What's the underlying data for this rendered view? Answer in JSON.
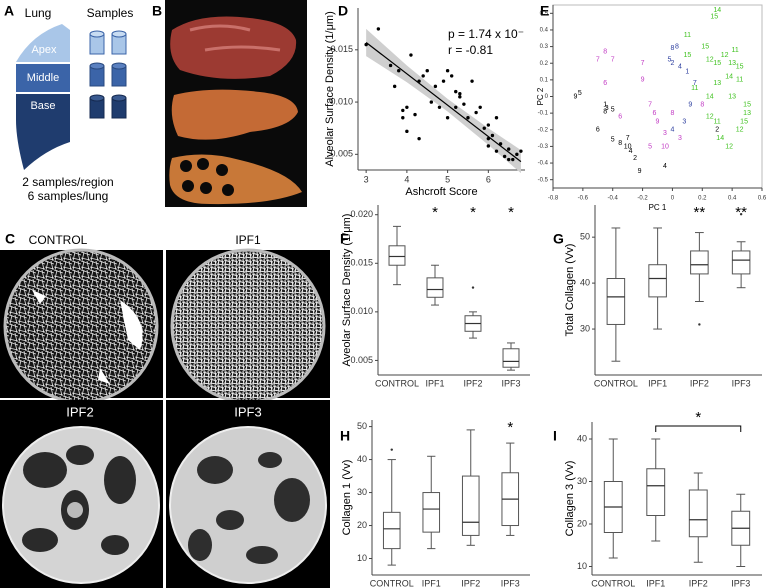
{
  "panel_a": {
    "label": "A",
    "lung": "Lung",
    "samples": "Samples",
    "regions": [
      "Apex",
      "Middle",
      "Base"
    ],
    "notes": [
      "2 samples/region",
      "6 samples/lung"
    ]
  },
  "panel_b": {
    "label": "B"
  },
  "panel_c": {
    "label": "C",
    "images": [
      "CONTROL",
      "IPF1",
      "IPF2",
      "IPF3"
    ]
  },
  "chart_data": [
    {
      "label": "D",
      "type": "scatter",
      "xlabel": "Ashcroft Score",
      "ylabel": "Alveolar Surface Density (1/μm)",
      "annotations": [
        "p = 1.74 x 10⁻",
        "r = -0.81"
      ],
      "color": "#000000",
      "x": [
        3.0,
        3.3,
        3.6,
        3.7,
        3.8,
        3.9,
        4.0,
        4.1,
        4.2,
        4.3,
        4.4,
        4.5,
        4.6,
        4.7,
        4.8,
        4.9,
        5.0,
        5.0,
        5.1,
        5.2,
        5.2,
        5.3,
        5.4,
        5.5,
        5.6,
        5.7,
        5.8,
        5.9,
        6.0,
        6.0,
        6.1,
        6.2,
        6.2,
        6.3,
        6.4,
        6.5,
        6.6,
        6.7,
        6.8,
        4.3,
        4.0,
        5.3,
        6.5,
        3.9,
        6.0
      ],
      "values": [
        0.0155,
        0.017,
        0.0135,
        0.0115,
        0.013,
        0.0085,
        0.0095,
        0.0145,
        0.0088,
        0.012,
        0.0125,
        0.013,
        0.01,
        0.0115,
        0.0095,
        0.012,
        0.013,
        0.0085,
        0.0125,
        0.011,
        0.0095,
        0.0105,
        0.0098,
        0.0085,
        0.012,
        0.009,
        0.0095,
        0.0075,
        0.0065,
        0.0058,
        0.0068,
        0.0053,
        0.0085,
        0.006,
        0.0048,
        0.0055,
        0.0045,
        0.005,
        0.0053,
        0.0065,
        0.0072,
        0.0108,
        0.0045,
        0.0092,
        0.0078
      ],
      "fit": {
        "x": [
          3,
          6.8
        ],
        "y": [
          0.0157,
          0.0043
        ]
      },
      "band": {
        "x": [
          3,
          4,
          5,
          6,
          6.8
        ],
        "upper": [
          0.017,
          0.0135,
          0.0103,
          0.0075,
          0.0054
        ],
        "lower": [
          0.0144,
          0.0119,
          0.0091,
          0.0059,
          0.0032
        ]
      },
      "xlim": [
        2.8,
        6.9
      ],
      "ylim": [
        0.0035,
        0.019
      ],
      "xticks": [
        3,
        4,
        5,
        6
      ],
      "yticks": [
        0.005,
        {
          "value": 0.01,
          "label": "0.010"
        },
        0.015
      ]
    },
    {
      "label": "E",
      "type": "scatter",
      "marker": "text",
      "xlabel": "PC 1",
      "ylabel": "PC 2",
      "xlim": [
        -0.8,
        0.6
      ],
      "ylim": [
        -0.55,
        0.55
      ],
      "xticks": [
        -0.8,
        -0.6,
        -0.4,
        -0.2,
        0,
        0.2,
        0.4,
        0.6
      ],
      "yticks": [
        -0.5,
        -0.4,
        -0.3,
        -0.2,
        -0.1,
        0,
        0.1,
        0.2,
        0.3,
        0.4,
        0.5
      ],
      "series": [
        {
          "color": "#000000",
          "x": [
            -0.65,
            -0.62,
            -0.45,
            -0.44,
            -0.45,
            -0.4,
            -0.5,
            -0.4,
            -0.35,
            -0.3,
            -0.28,
            -0.25,
            -0.22,
            -0.05,
            -0.3,
            0.3
          ],
          "values": [
            0.0,
            0.02,
            -0.05,
            -0.07,
            -0.09,
            -0.08,
            -0.2,
            -0.26,
            -0.28,
            -0.3,
            -0.33,
            -0.37,
            -0.45,
            -0.42,
            -0.25,
            -0.2
          ],
          "labels": [
            "9",
            "5",
            "1",
            "3",
            "8",
            "5",
            "6",
            "5",
            "8",
            "10",
            "4",
            "2",
            "9",
            "4",
            "7",
            "2"
          ]
        },
        {
          "color": "#2b3d9e",
          "x": [
            0.0,
            0.03,
            -0.02,
            0.0,
            0.05,
            0.1,
            0.15,
            0.12,
            0.0,
            0.08
          ],
          "values": [
            0.29,
            0.3,
            0.22,
            0.2,
            0.18,
            0.15,
            0.08,
            -0.05,
            -0.2,
            -0.15
          ],
          "labels": [
            "8",
            "8",
            "5",
            "2",
            "4",
            "1",
            "7",
            "9",
            "4",
            "3"
          ]
        },
        {
          "color": "#c23bc4",
          "x": [
            -0.45,
            -0.5,
            -0.4,
            -0.2,
            -0.2,
            -0.45,
            -0.15,
            -0.12,
            -0.1,
            -0.05,
            0.0,
            0.05,
            -0.15,
            -0.05,
            -0.35,
            0.2
          ],
          "values": [
            0.27,
            0.22,
            0.22,
            0.2,
            0.1,
            0.08,
            -0.05,
            -0.1,
            -0.15,
            -0.22,
            -0.1,
            -0.25,
            -0.3,
            -0.3,
            -0.12,
            -0.05
          ],
          "labels": [
            "8",
            "7",
            "7",
            "7",
            "9",
            "6",
            "7",
            "6",
            "9",
            "3",
            "8",
            "3",
            "5",
            "10",
            "6",
            "8"
          ]
        },
        {
          "color": "#3fc21f",
          "x": [
            0.3,
            0.28,
            0.1,
            0.22,
            0.1,
            0.25,
            0.3,
            0.42,
            0.35,
            0.4,
            0.45,
            0.38,
            0.45,
            0.3,
            0.25,
            0.4,
            0.5,
            0.5,
            0.48,
            0.45,
            0.3,
            0.32,
            0.38,
            0.25,
            0.15
          ],
          "values": [
            0.52,
            0.48,
            0.37,
            0.3,
            0.25,
            0.22,
            0.2,
            0.28,
            0.25,
            0.2,
            0.18,
            0.12,
            0.1,
            0.08,
            0.0,
            0.0,
            -0.05,
            -0.1,
            -0.15,
            -0.2,
            -0.15,
            -0.25,
            -0.3,
            -0.12,
            0.05
          ],
          "labels": [
            "14",
            "15",
            "11",
            "15",
            "15",
            "12",
            "15",
            "11",
            "12",
            "13",
            "15",
            "14",
            "11",
            "13",
            "14",
            "13",
            "15",
            "13",
            "15",
            "12",
            "11",
            "14",
            "12",
            "12",
            "11"
          ]
        }
      ]
    },
    {
      "label": "F",
      "type": "box",
      "ylabel": "Aveolar Surface Density (1/μm)",
      "categories": [
        "CONTROL",
        "IPF1",
        "IPF2",
        "IPF3"
      ],
      "boxes": [
        {
          "min": 0.0128,
          "q1": 0.0148,
          "median": 0.0157,
          "q3": 0.0168,
          "max": 0.0188,
          "outliers": []
        },
        {
          "min": 0.0107,
          "q1": 0.0115,
          "median": 0.0123,
          "q3": 0.0135,
          "max": 0.0148,
          "outliers": []
        },
        {
          "min": 0.0073,
          "q1": 0.008,
          "median": 0.0088,
          "q3": 0.0096,
          "max": 0.01,
          "outliers": [
            0.0125
          ]
        },
        {
          "min": 0.004,
          "q1": 0.0043,
          "median": 0.0049,
          "q3": 0.0062,
          "max": 0.0068,
          "outliers": []
        }
      ],
      "annotations": [
        null,
        "*",
        "*",
        "*"
      ],
      "ylim": [
        0.0035,
        0.021
      ],
      "yticks": [
        0.005,
        {
          "value": 0.01,
          "label": "0.010"
        },
        0.015,
        {
          "value": 0.02,
          "label": "0.020"
        }
      ]
    },
    {
      "label": "G",
      "type": "box",
      "ylabel": "Total Collagen (Vv)",
      "categories": [
        "CONTROL",
        "IPF1",
        "IPF2",
        "IPF3"
      ],
      "boxes": [
        {
          "min": 23,
          "q1": 31,
          "median": 37,
          "q3": 41,
          "max": 52,
          "outliers": []
        },
        {
          "min": 30,
          "q1": 37,
          "median": 41,
          "q3": 44,
          "max": 52,
          "outliers": []
        },
        {
          "min": 36,
          "q1": 42,
          "median": 44,
          "q3": 47,
          "max": 51,
          "outliers": [
            31
          ]
        },
        {
          "min": 39,
          "q1": 42,
          "median": 45,
          "q3": 47,
          "max": 49,
          "outliers": [
            55
          ]
        }
      ],
      "annotations": [
        null,
        null,
        "**",
        "**"
      ],
      "ylim": [
        20,
        57
      ],
      "yticks": [
        30,
        40,
        50
      ]
    },
    {
      "label": "H",
      "type": "box",
      "ylabel": "Collagen 1 (Vv)",
      "categories": [
        "CONTROL",
        "IPF1",
        "IPF2",
        "IPF3"
      ],
      "boxes": [
        {
          "min": 8,
          "q1": 13,
          "median": 19,
          "q3": 24,
          "max": 40,
          "outliers": [
            43
          ]
        },
        {
          "min": 13,
          "q1": 18,
          "median": 25,
          "q3": 30,
          "max": 41,
          "outliers": []
        },
        {
          "min": 14,
          "q1": 17,
          "median": 21,
          "q3": 35,
          "max": 49,
          "outliers": []
        },
        {
          "min": 17,
          "q1": 20,
          "median": 28,
          "q3": 36,
          "max": 45,
          "outliers": []
        }
      ],
      "annotations": [
        null,
        null,
        null,
        "*"
      ],
      "ylim": [
        5,
        52
      ],
      "yticks": [
        10,
        20,
        30,
        40,
        50
      ]
    },
    {
      "label": "I",
      "type": "box",
      "ylabel": "Collagen 3 (Vv)",
      "categories": [
        "CONTROL",
        "IPF1",
        "IPF2",
        "IPF3"
      ],
      "boxes": [
        {
          "min": 12,
          "q1": 18,
          "median": 24,
          "q3": 30,
          "max": 40,
          "outliers": []
        },
        {
          "min": 16,
          "q1": 22,
          "median": 29,
          "q3": 33,
          "max": 40,
          "outliers": []
        },
        {
          "min": 11,
          "q1": 17,
          "median": 21,
          "q3": 28,
          "max": 32,
          "outliers": []
        },
        {
          "min": 10,
          "q1": 15,
          "median": 19,
          "q3": 23,
          "max": 27,
          "outliers": []
        }
      ],
      "bracket": {
        "label": "*",
        "categories": [
          "IPF1",
          "IPF3"
        ]
      },
      "ylim": [
        8,
        44
      ],
      "yticks": [
        10,
        20,
        30,
        40
      ]
    }
  ]
}
